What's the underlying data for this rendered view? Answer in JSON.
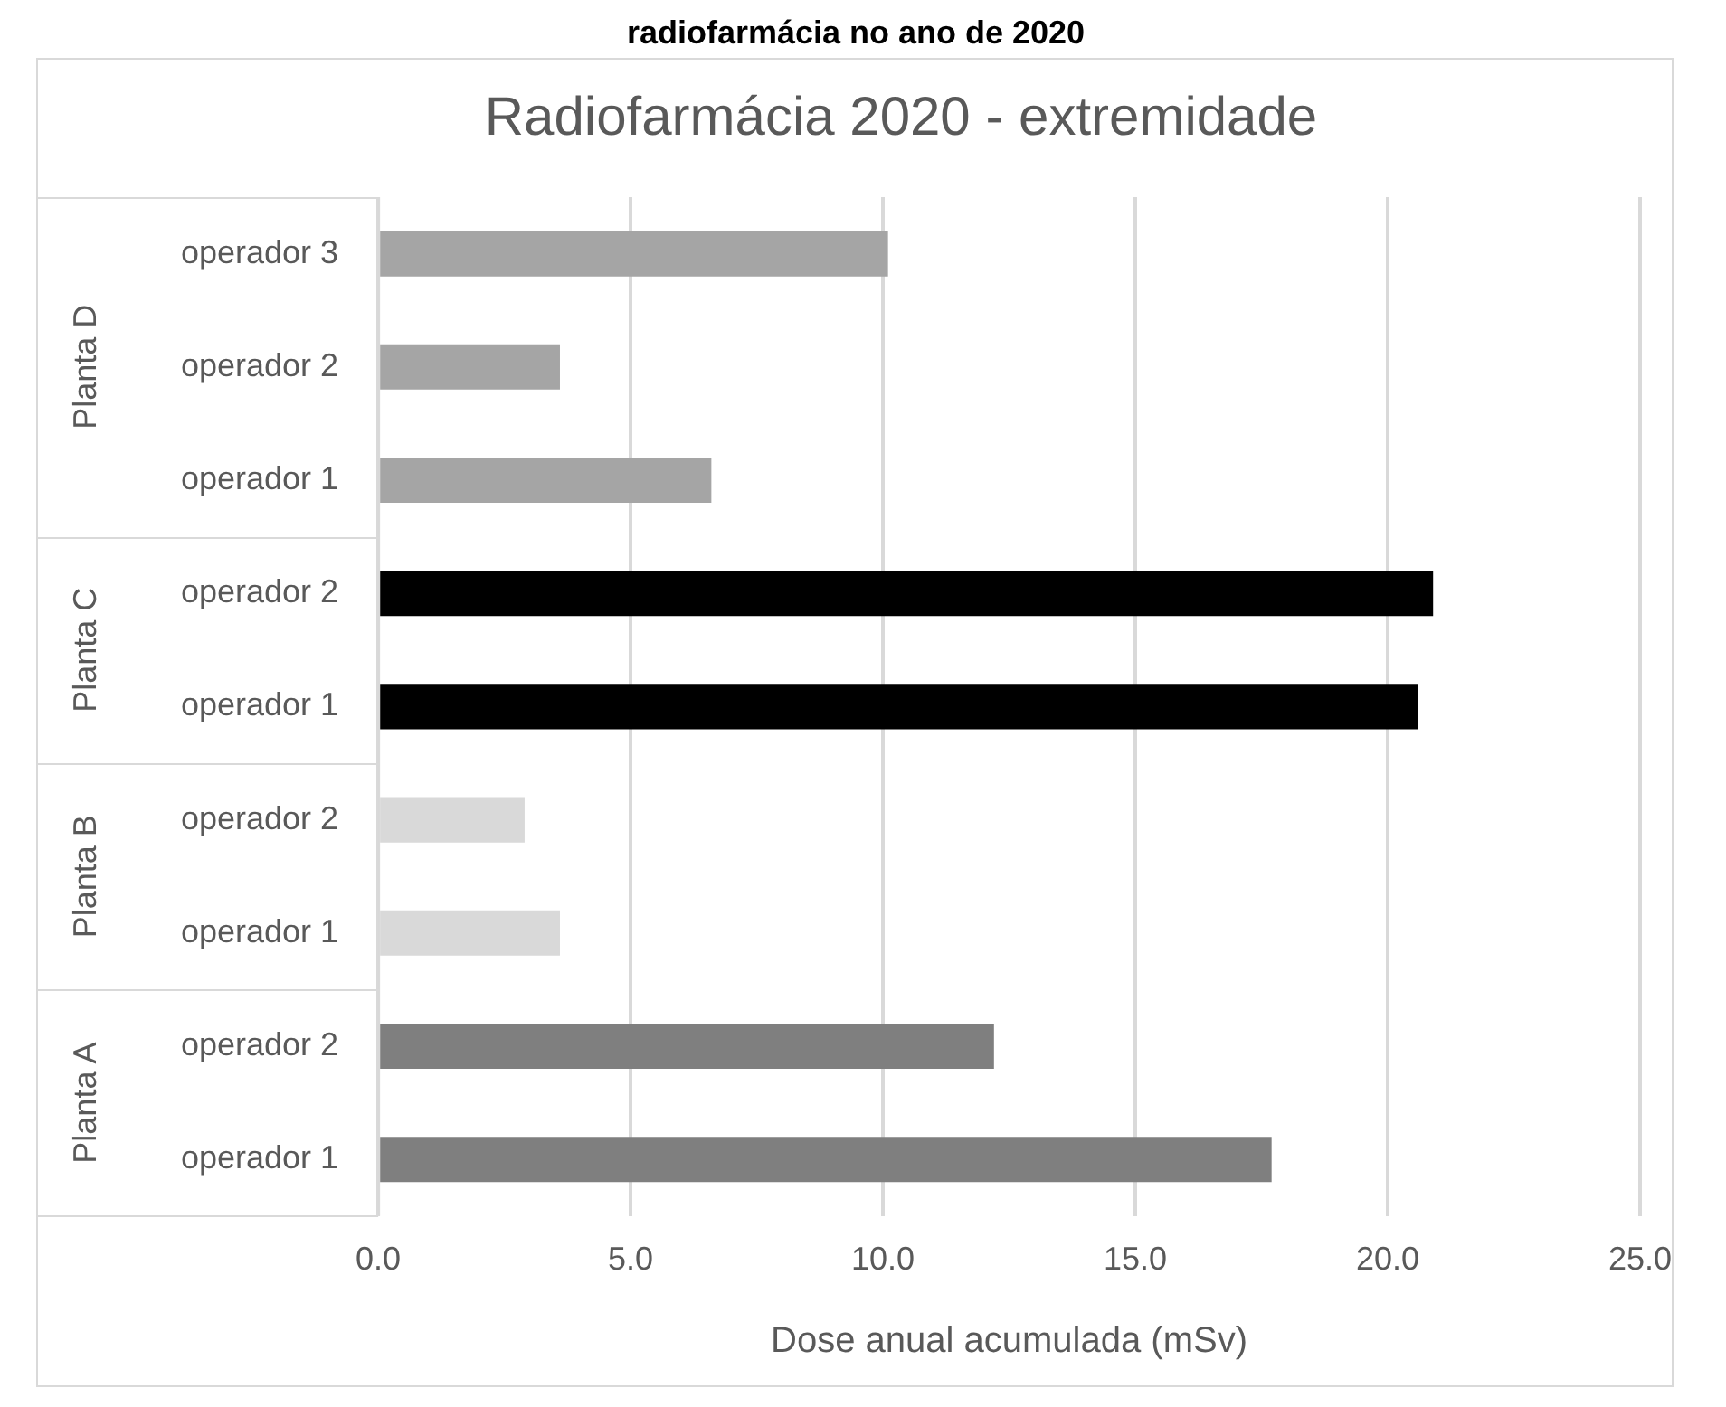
{
  "chart_data": {
    "type": "bar",
    "orientation": "horizontal",
    "title": "Radiofarmácia 2020 - extremidade",
    "xlabel": "Dose anual acumulada (mSv)",
    "annotations": [
      "radiofarmácia no ano de 2020",
      "Planta D",
      "Planta C",
      "Planta B",
      "Planta A"
    ],
    "categories": [
      "operador 3",
      "operador 2",
      "operador 1",
      "operador 2",
      "operador 1",
      "operador 2",
      "operador 1",
      "operador 2",
      "operador 1"
    ],
    "values": [
      10.1,
      3.6,
      6.6,
      20.9,
      20.6,
      2.9,
      3.6,
      12.2,
      17.7
    ],
    "colors": [
      "#a5a5a5",
      "#a5a5a5",
      "#a5a5a5",
      "#000000",
      "#000000",
      "#d9d9d9",
      "#d9d9d9",
      "#7f7f7f",
      "#7f7f7f"
    ],
    "xlim": [
      0,
      25
    ],
    "xticks": [
      {
        "value": 0,
        "label": "0.0"
      },
      {
        "value": 5,
        "label": "5.0"
      },
      {
        "value": 10,
        "label": "10.0"
      },
      {
        "value": 15,
        "label": "15.0"
      },
      {
        "value": 20,
        "label": "20.0"
      },
      {
        "value": 25,
        "label": "25.0"
      }
    ],
    "grid": "x",
    "legend": false
  }
}
